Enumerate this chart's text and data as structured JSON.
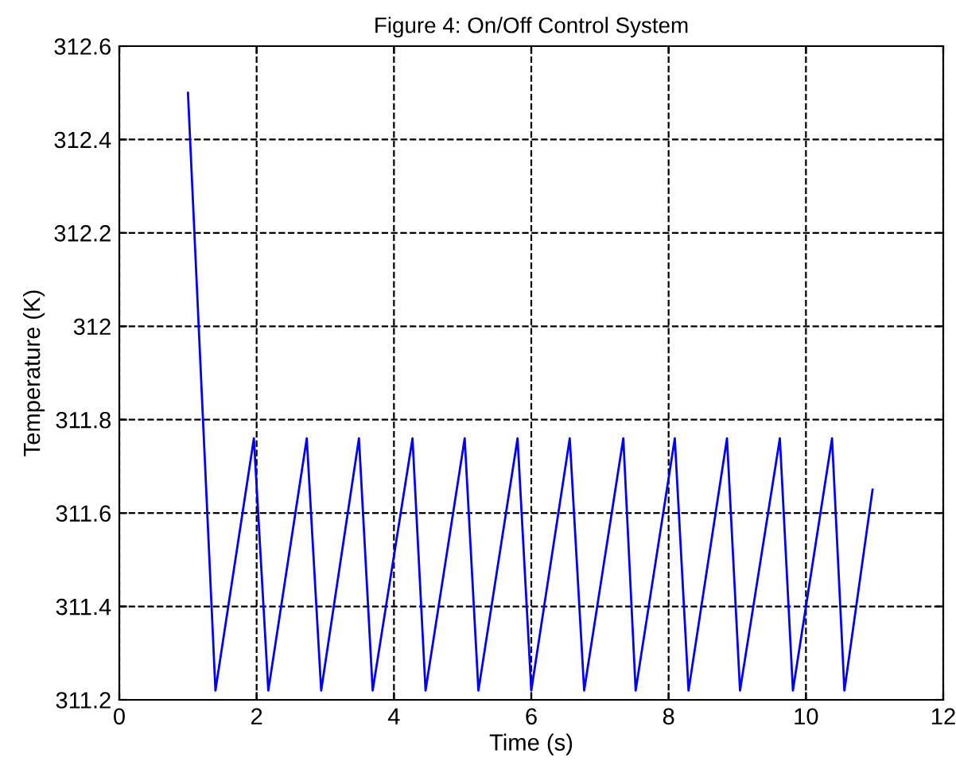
{
  "chart_data": {
    "type": "line",
    "title": "Figure 4: On/Off Control System",
    "xlabel": "Time (s)",
    "ylabel": "Temperature (K)",
    "xlim": [
      0,
      12
    ],
    "xticks": [
      0,
      2,
      4,
      6,
      8,
      10,
      12
    ],
    "ylim": [
      311.2,
      312.6
    ],
    "yticks": [
      311.2,
      311.4,
      311.6,
      311.8,
      {
        "value": 312.0,
        "label": "312"
      },
      312.2,
      312.4,
      312.6
    ],
    "grid": true,
    "line_style": "solid",
    "marker": "none",
    "series": [
      {
        "color": "#0000ff",
        "x": [
          1.0,
          1.4,
          1.96,
          2.17,
          2.73,
          2.94,
          3.49,
          3.69,
          4.27,
          4.46,
          5.03,
          5.23,
          5.8,
          6.0,
          6.56,
          6.77,
          7.34,
          7.52,
          8.09,
          8.29,
          8.85,
          9.04,
          9.62,
          9.81,
          10.38,
          10.56,
          10.97
        ],
        "values": [
          312.5,
          311.22,
          311.76,
          311.22,
          311.76,
          311.22,
          311.76,
          311.22,
          311.76,
          311.22,
          311.76,
          311.22,
          311.76,
          311.22,
          311.76,
          311.22,
          311.76,
          311.22,
          311.76,
          311.22,
          311.76,
          311.22,
          311.76,
          311.22,
          311.76,
          311.22,
          311.65
        ]
      }
    ]
  }
}
